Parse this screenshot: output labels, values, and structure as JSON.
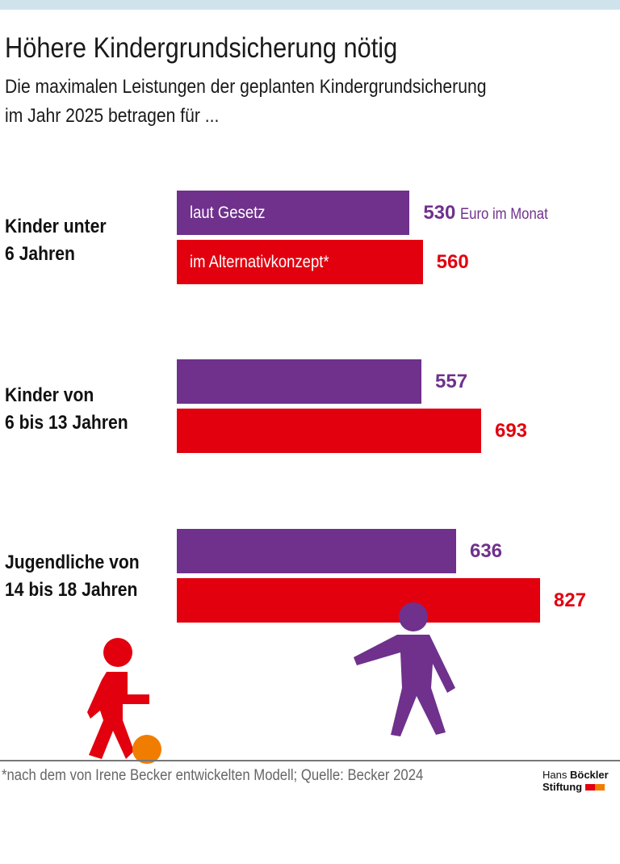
{
  "title": "Höhere Kindergrundsicherung nötig",
  "subtitle_line1": "Die maximalen Leistungen der geplanten Kindergrundsicherung",
  "subtitle_line2": "im Jahr 2025 betragen für ...",
  "chart_data": {
    "type": "bar",
    "orientation": "horizontal",
    "categories": [
      [
        "Kinder unter",
        "6 Jahren"
      ],
      [
        "Kinder von",
        "6 bis 13 Jahren"
      ],
      [
        "Jugendliche von",
        "14 bis 18 Jahren"
      ]
    ],
    "series": [
      {
        "name": "laut Gesetz",
        "color": "#6f318c",
        "values": [
          530,
          557,
          636
        ]
      },
      {
        "name": "im Alternativkonzept*",
        "color": "#e2000f",
        "values": [
          560,
          693,
          827
        ]
      }
    ],
    "unit_label": "Euro im Monat"
  },
  "footnote": "*nach dem von Irene Becker entwickelten Modell; Quelle: Becker 2024",
  "logo": {
    "line1_a": "Hans",
    "line1_b": "Böckler",
    "line2": "Stiftung"
  },
  "colors": {
    "purple": "#6f318c",
    "red": "#e2000f",
    "orange": "#f07d00",
    "topbar": "#cfe3ec"
  }
}
